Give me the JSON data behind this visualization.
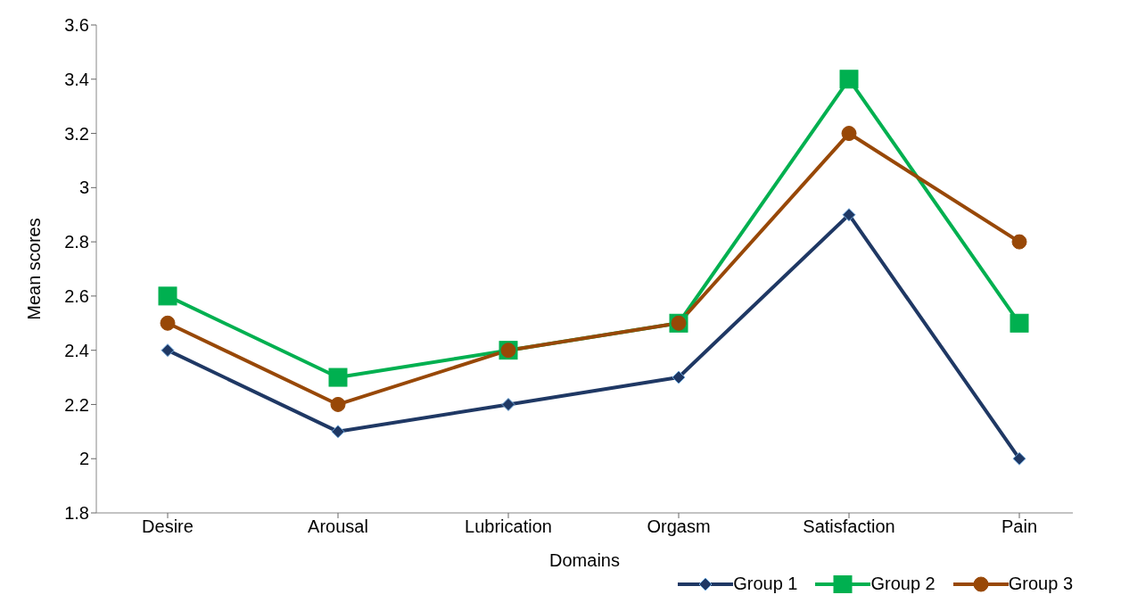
{
  "chart_data": {
    "type": "line",
    "xlabel": "Domains",
    "ylabel": "Mean scores",
    "categories": [
      "Desire",
      "Arousal",
      "Lubrication",
      "Orgasm",
      "Satisfaction",
      "Pain"
    ],
    "series": [
      {
        "name": "Group 1",
        "color": "#1f3864",
        "marker": "diamond",
        "values": [
          2.4,
          2.1,
          2.2,
          2.3,
          2.9,
          2.0
        ]
      },
      {
        "name": "Group 2",
        "color": "#00b050",
        "marker": "square",
        "values": [
          2.6,
          2.3,
          2.4,
          2.5,
          3.4,
          2.5
        ]
      },
      {
        "name": "Group 3",
        "color": "#984807",
        "marker": "circle",
        "values": [
          2.5,
          2.2,
          2.4,
          2.5,
          3.2,
          2.8
        ]
      }
    ],
    "ylim": [
      1.8,
      3.6
    ],
    "yticks": [
      1.8,
      2,
      2.2,
      2.4,
      2.6,
      2.8,
      3,
      3.2,
      3.4,
      3.6
    ],
    "grid": false,
    "legend": "bottom right"
  }
}
